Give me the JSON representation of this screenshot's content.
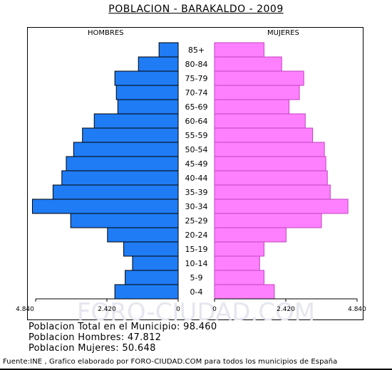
{
  "chart_data": {
    "type": "bar",
    "title": "POBLACION - BARAKALDO - 2009",
    "subtype": "population-pyramid",
    "left_label": "HOMBRES",
    "right_label": "MUJERES",
    "categories": [
      "85+",
      "80-84",
      "75-79",
      "70-74",
      "65-69",
      "60-64",
      "55-59",
      "50-54",
      "45-49",
      "40-44",
      "35-39",
      "30-34",
      "25-29",
      "20-24",
      "15-19",
      "10-14",
      "5-9",
      "0-4"
    ],
    "series": [
      {
        "name": "HOMBRES",
        "color": "#1f7cf5",
        "values": [
          650,
          1350,
          2150,
          2100,
          2050,
          2850,
          3250,
          3550,
          3800,
          3950,
          4250,
          4950,
          3650,
          2400,
          1850,
          1550,
          1800,
          2150
        ]
      },
      {
        "name": "MUJERES",
        "color": "#ff80ff",
        "values": [
          1680,
          2280,
          3030,
          2880,
          2530,
          3080,
          3330,
          3730,
          3780,
          3830,
          3930,
          4530,
          3630,
          2430,
          1680,
          1530,
          1680,
          2030
        ]
      }
    ],
    "x_ticks_left": [
      "4.840",
      "2.420",
      "0"
    ],
    "x_ticks_right": [
      "0",
      "2.420",
      "4.840"
    ],
    "xlim": [
      0,
      4840
    ],
    "watermark": "FORO-CIUDAD.COM"
  },
  "stats": [
    "Poblacion Total en el Municipio: 98.460",
    "Poblacion Hombres: 47.812",
    "Poblacion Mujeres: 50.648"
  ],
  "footer": "Fuente:INE , Grafico elaborado por FORO-CIUDAD.COM para todos los municipios de España"
}
